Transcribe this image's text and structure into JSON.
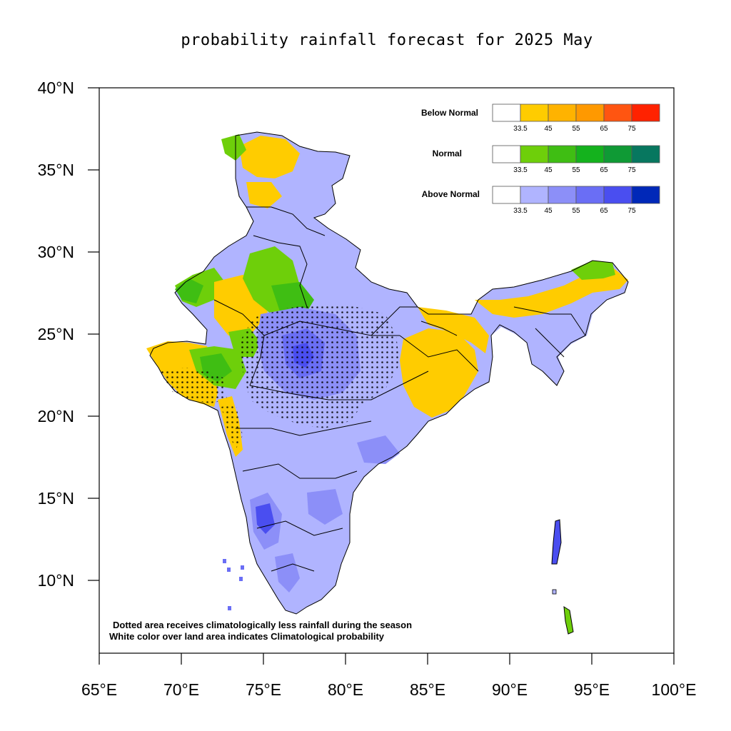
{
  "title": "probability rainfall forecast for 2025 May",
  "axes": {
    "lon_ticks": [
      "65°E",
      "70°E",
      "75°E",
      "80°E",
      "85°E",
      "90°E",
      "95°E",
      "100°E"
    ],
    "lat_ticks": [
      "40°N",
      "35°N",
      "30°N",
      "25°N",
      "20°N",
      "15°N",
      "10°N"
    ],
    "lon_range": [
      65,
      100
    ],
    "lat_range": [
      5.5,
      40
    ]
  },
  "legend": {
    "ticks": [
      "33.5",
      "45",
      "55",
      "65",
      "75"
    ],
    "categories": [
      {
        "name": "Below Normal",
        "colors": [
          "#ffffff",
          "#ffcc00",
          "#ffb300",
          "#ff9900",
          "#ff5511",
          "#ff2200"
        ]
      },
      {
        "name": "Normal",
        "colors": [
          "#ffffff",
          "#6ecf0a",
          "#3fbe13",
          "#14b21d",
          "#0f9a35",
          "#07775f"
        ]
      },
      {
        "name": "Above Normal",
        "colors": [
          "#ffffff",
          "#b0b4ff",
          "#8c8ff8",
          "#6a6ef5",
          "#4a4ef0",
          "#0028b8"
        ]
      }
    ]
  },
  "notes": [
    "Dotted area receives climatologically less rainfall during the season",
    "White color over land area indicates Climatological probability"
  ],
  "colors": {
    "above_light": "#b0b4ff",
    "above_mid": "#8c8ff8",
    "above_strong": "#6a6ef5",
    "above_dark": "#4a4ef0",
    "below_light": "#ffcc00",
    "normal_light": "#6ecf0a",
    "normal_mid": "#3fbe13"
  }
}
